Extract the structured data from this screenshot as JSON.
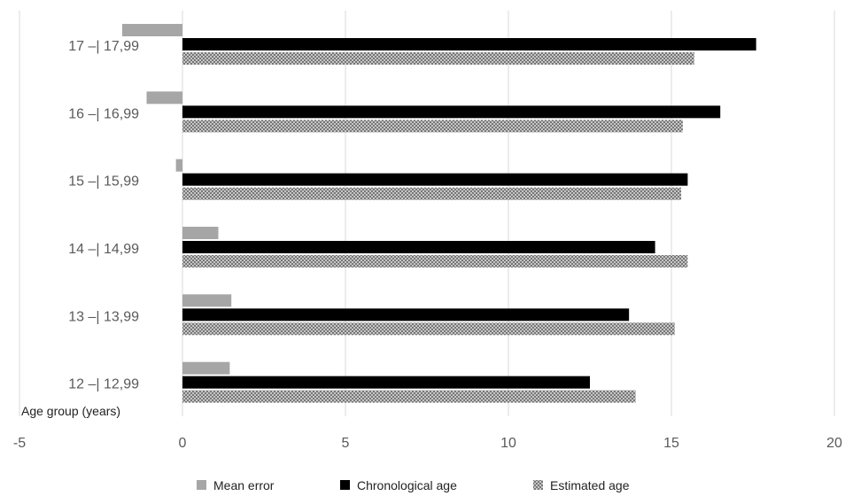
{
  "chart_data": {
    "type": "bar",
    "orientation": "horizontal",
    "categories": [
      "12 –| 12,99",
      "13 –| 13,99",
      "14 –| 14,99",
      "15 –| 15,99",
      "16 –| 16,99",
      "17 –| 17,99"
    ],
    "series": [
      {
        "name": "Mean error",
        "key": "mean",
        "color": "#a6a6a6",
        "pattern": "solid",
        "values": [
          1.45,
          1.5,
          1.1,
          -0.2,
          -1.1,
          -1.85
        ]
      },
      {
        "name": "Chronological age",
        "key": "chrono",
        "color": "#000000",
        "pattern": "solid",
        "values": [
          12.5,
          13.7,
          14.5,
          15.5,
          16.5,
          17.6
        ]
      },
      {
        "name": "Estimated age",
        "key": "est",
        "color": "#808080",
        "pattern": "crosshatch",
        "values": [
          13.9,
          15.1,
          15.5,
          15.3,
          15.35,
          15.7
        ]
      }
    ],
    "xlabel": "",
    "ylabel": "Age group (years)",
    "xlim": [
      -5,
      20
    ],
    "xticks": [
      -5,
      0,
      5,
      10,
      15,
      20
    ],
    "xtick_labels": [
      "-5",
      "0",
      "5",
      "10",
      "15",
      "20"
    ],
    "grid": "vertical",
    "legend_position": "bottom"
  }
}
